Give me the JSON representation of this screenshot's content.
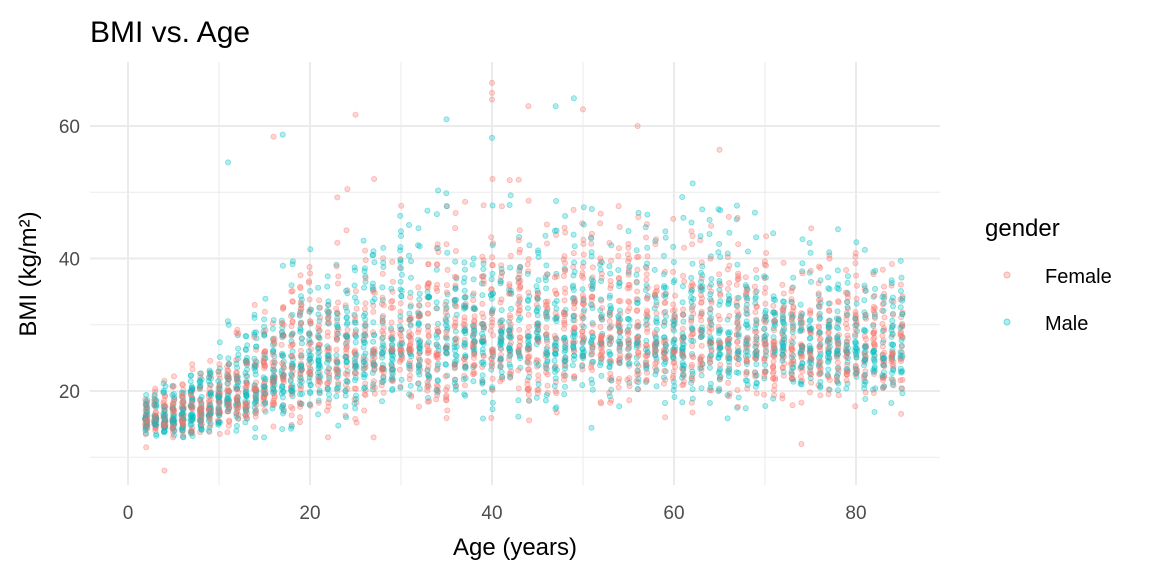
{
  "chart_data": {
    "type": "scatter",
    "title": "BMI vs. Age",
    "xlabel": "Age (years)",
    "ylabel": "BMI (kg/m²)",
    "xlim": [
      -5,
      89
    ],
    "ylim": [
      5,
      69
    ],
    "x_ticks": [
      0,
      20,
      40,
      60,
      80
    ],
    "x_tick_labels": [
      "0",
      "20",
      "40",
      "60",
      "80"
    ],
    "y_ticks": [
      20,
      40,
      60
    ],
    "y_tick_labels": [
      "20",
      "40",
      "60"
    ],
    "grid": true,
    "point_alpha": 0.3,
    "legend": {
      "title": "gender",
      "placement": "right",
      "entries": [
        "Female",
        "Male"
      ]
    },
    "series": [
      {
        "name": "Female",
        "color": "#F8766D"
      },
      {
        "name": "Male",
        "color": "#00BFC4"
      }
    ],
    "note_trend": "Dense points at every integer age 2–85; median BMI about 16 at age 2, rising to about 25 by age 20, about 28 at ages 40–60, about 26 at age 85.",
    "trend": {
      "ages": [
        2,
        6,
        10,
        14,
        18,
        25,
        35,
        45,
        55,
        65,
        75,
        85
      ],
      "median_bmi": [
        16,
        16,
        18,
        21,
        24,
        26,
        27.5,
        28.5,
        28.5,
        28,
        27,
        26
      ],
      "spread_sd": [
        1.5,
        2,
        3,
        4.5,
        5.5,
        6,
        6.5,
        6.5,
        6.5,
        6,
        5,
        4.5
      ]
    },
    "notable_points": [
      {
        "series": "Female",
        "x": 40,
        "y": 66.5
      },
      {
        "series": "Female",
        "x": 40,
        "y": 65
      },
      {
        "series": "Female",
        "x": 40,
        "y": 64
      },
      {
        "series": "Male",
        "x": 49,
        "y": 64.2
      },
      {
        "series": "Male",
        "x": 47,
        "y": 63
      },
      {
        "series": "Female",
        "x": 44,
        "y": 63
      },
      {
        "series": "Female",
        "x": 50,
        "y": 62.5
      },
      {
        "series": "Female",
        "x": 25,
        "y": 61.7
      },
      {
        "series": "Male",
        "x": 35,
        "y": 61
      },
      {
        "series": "Female",
        "x": 56,
        "y": 60
      },
      {
        "series": "Male",
        "x": 40,
        "y": 58.2
      },
      {
        "series": "Male",
        "x": 17,
        "y": 58.7
      },
      {
        "series": "Female",
        "x": 16,
        "y": 58.4
      },
      {
        "series": "Male",
        "x": 11,
        "y": 54.5
      },
      {
        "series": "Female",
        "x": 65,
        "y": 56.4
      },
      {
        "series": "Female",
        "x": 4,
        "y": 8
      },
      {
        "series": "Female",
        "x": 74,
        "y": 12
      },
      {
        "series": "Female",
        "x": 2,
        "y": 11.5
      }
    ]
  }
}
